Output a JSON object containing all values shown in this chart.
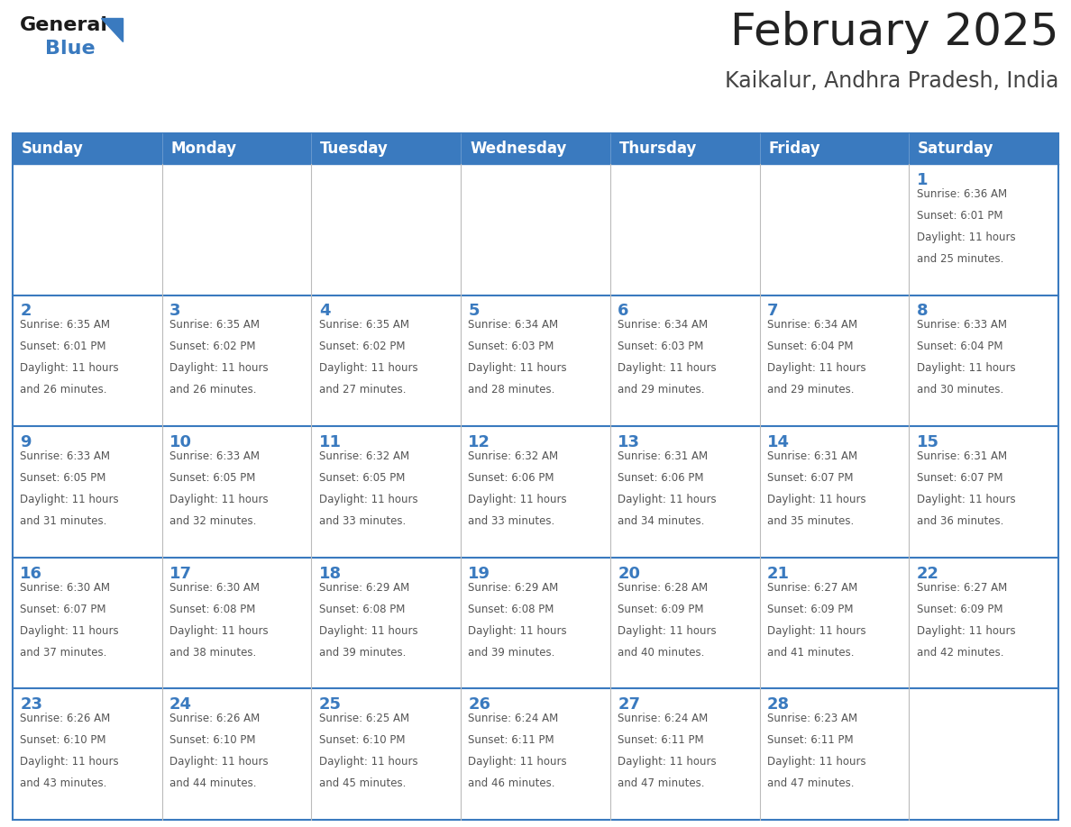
{
  "title": "February 2025",
  "subtitle": "Kaikalur, Andhra Pradesh, India",
  "header_color": "#3a7abf",
  "header_text_color": "#ffffff",
  "border_color": "#3a7abf",
  "row_border_color": "#3a7abf",
  "col_border_color": "#aaaaaa",
  "day_number_color": "#3a7abf",
  "info_text_color": "#555555",
  "title_color": "#222222",
  "subtitle_color": "#444444",
  "bg_color": "#ffffff",
  "weekdays": [
    "Sunday",
    "Monday",
    "Tuesday",
    "Wednesday",
    "Thursday",
    "Friday",
    "Saturday"
  ],
  "days_data": [
    {
      "day": 1,
      "col": 6,
      "row": 0,
      "sunrise": "6:36 AM",
      "sunset": "6:01 PM",
      "daylight_h": "11 hours",
      "daylight_m": "and 25 minutes."
    },
    {
      "day": 2,
      "col": 0,
      "row": 1,
      "sunrise": "6:35 AM",
      "sunset": "6:01 PM",
      "daylight_h": "11 hours",
      "daylight_m": "and 26 minutes."
    },
    {
      "day": 3,
      "col": 1,
      "row": 1,
      "sunrise": "6:35 AM",
      "sunset": "6:02 PM",
      "daylight_h": "11 hours",
      "daylight_m": "and 26 minutes."
    },
    {
      "day": 4,
      "col": 2,
      "row": 1,
      "sunrise": "6:35 AM",
      "sunset": "6:02 PM",
      "daylight_h": "11 hours",
      "daylight_m": "and 27 minutes."
    },
    {
      "day": 5,
      "col": 3,
      "row": 1,
      "sunrise": "6:34 AM",
      "sunset": "6:03 PM",
      "daylight_h": "11 hours",
      "daylight_m": "and 28 minutes."
    },
    {
      "day": 6,
      "col": 4,
      "row": 1,
      "sunrise": "6:34 AM",
      "sunset": "6:03 PM",
      "daylight_h": "11 hours",
      "daylight_m": "and 29 minutes."
    },
    {
      "day": 7,
      "col": 5,
      "row": 1,
      "sunrise": "6:34 AM",
      "sunset": "6:04 PM",
      "daylight_h": "11 hours",
      "daylight_m": "and 29 minutes."
    },
    {
      "day": 8,
      "col": 6,
      "row": 1,
      "sunrise": "6:33 AM",
      "sunset": "6:04 PM",
      "daylight_h": "11 hours",
      "daylight_m": "and 30 minutes."
    },
    {
      "day": 9,
      "col": 0,
      "row": 2,
      "sunrise": "6:33 AM",
      "sunset": "6:05 PM",
      "daylight_h": "11 hours",
      "daylight_m": "and 31 minutes."
    },
    {
      "day": 10,
      "col": 1,
      "row": 2,
      "sunrise": "6:33 AM",
      "sunset": "6:05 PM",
      "daylight_h": "11 hours",
      "daylight_m": "and 32 minutes."
    },
    {
      "day": 11,
      "col": 2,
      "row": 2,
      "sunrise": "6:32 AM",
      "sunset": "6:05 PM",
      "daylight_h": "11 hours",
      "daylight_m": "and 33 minutes."
    },
    {
      "day": 12,
      "col": 3,
      "row": 2,
      "sunrise": "6:32 AM",
      "sunset": "6:06 PM",
      "daylight_h": "11 hours",
      "daylight_m": "and 33 minutes."
    },
    {
      "day": 13,
      "col": 4,
      "row": 2,
      "sunrise": "6:31 AM",
      "sunset": "6:06 PM",
      "daylight_h": "11 hours",
      "daylight_m": "and 34 minutes."
    },
    {
      "day": 14,
      "col": 5,
      "row": 2,
      "sunrise": "6:31 AM",
      "sunset": "6:07 PM",
      "daylight_h": "11 hours",
      "daylight_m": "and 35 minutes."
    },
    {
      "day": 15,
      "col": 6,
      "row": 2,
      "sunrise": "6:31 AM",
      "sunset": "6:07 PM",
      "daylight_h": "11 hours",
      "daylight_m": "and 36 minutes."
    },
    {
      "day": 16,
      "col": 0,
      "row": 3,
      "sunrise": "6:30 AM",
      "sunset": "6:07 PM",
      "daylight_h": "11 hours",
      "daylight_m": "and 37 minutes."
    },
    {
      "day": 17,
      "col": 1,
      "row": 3,
      "sunrise": "6:30 AM",
      "sunset": "6:08 PM",
      "daylight_h": "11 hours",
      "daylight_m": "and 38 minutes."
    },
    {
      "day": 18,
      "col": 2,
      "row": 3,
      "sunrise": "6:29 AM",
      "sunset": "6:08 PM",
      "daylight_h": "11 hours",
      "daylight_m": "and 39 minutes."
    },
    {
      "day": 19,
      "col": 3,
      "row": 3,
      "sunrise": "6:29 AM",
      "sunset": "6:08 PM",
      "daylight_h": "11 hours",
      "daylight_m": "and 39 minutes."
    },
    {
      "day": 20,
      "col": 4,
      "row": 3,
      "sunrise": "6:28 AM",
      "sunset": "6:09 PM",
      "daylight_h": "11 hours",
      "daylight_m": "and 40 minutes."
    },
    {
      "day": 21,
      "col": 5,
      "row": 3,
      "sunrise": "6:27 AM",
      "sunset": "6:09 PM",
      "daylight_h": "11 hours",
      "daylight_m": "and 41 minutes."
    },
    {
      "day": 22,
      "col": 6,
      "row": 3,
      "sunrise": "6:27 AM",
      "sunset": "6:09 PM",
      "daylight_h": "11 hours",
      "daylight_m": "and 42 minutes."
    },
    {
      "day": 23,
      "col": 0,
      "row": 4,
      "sunrise": "6:26 AM",
      "sunset": "6:10 PM",
      "daylight_h": "11 hours",
      "daylight_m": "and 43 minutes."
    },
    {
      "day": 24,
      "col": 1,
      "row": 4,
      "sunrise": "6:26 AM",
      "sunset": "6:10 PM",
      "daylight_h": "11 hours",
      "daylight_m": "and 44 minutes."
    },
    {
      "day": 25,
      "col": 2,
      "row": 4,
      "sunrise": "6:25 AM",
      "sunset": "6:10 PM",
      "daylight_h": "11 hours",
      "daylight_m": "and 45 minutes."
    },
    {
      "day": 26,
      "col": 3,
      "row": 4,
      "sunrise": "6:24 AM",
      "sunset": "6:11 PM",
      "daylight_h": "11 hours",
      "daylight_m": "and 46 minutes."
    },
    {
      "day": 27,
      "col": 4,
      "row": 4,
      "sunrise": "6:24 AM",
      "sunset": "6:11 PM",
      "daylight_h": "11 hours",
      "daylight_m": "and 47 minutes."
    },
    {
      "day": 28,
      "col": 5,
      "row": 4,
      "sunrise": "6:23 AM",
      "sunset": "6:11 PM",
      "daylight_h": "11 hours",
      "daylight_m": "and 47 minutes."
    }
  ],
  "logo_general_color": "#1a1a1a",
  "logo_blue_color": "#3a7abf",
  "logo_triangle_color": "#3a7abf",
  "title_fontsize": 36,
  "subtitle_fontsize": 17,
  "header_fontsize": 12,
  "day_num_fontsize": 13,
  "info_fontsize": 8.5
}
